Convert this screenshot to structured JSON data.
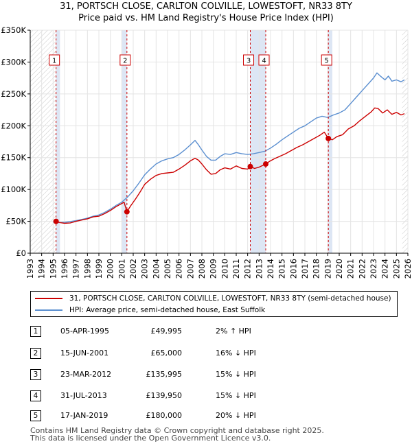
{
  "header": {
    "title": "31, PORTSCH CLOSE, CARLTON COLVILLE, LOWESTOFT, NR33 8TY",
    "subtitle": "Price paid vs. HM Land Registry's House Price Index (HPI)"
  },
  "chart_data": {
    "type": "line",
    "title": "31, PORTSCH CLOSE, CARLTON COLVILLE, LOWESTOFT, NR33 8TY",
    "subtitle": "Price paid vs. HM Land Registry's House Price Index (HPI)",
    "xlabel": "",
    "ylabel": "",
    "xlim": [
      1993,
      2026
    ],
    "ylim": [
      0,
      350000
    ],
    "y_ticks": [
      0,
      50000,
      100000,
      150000,
      200000,
      250000,
      300000,
      350000
    ],
    "y_tick_labels": [
      "£0",
      "£50K",
      "£100K",
      "£150K",
      "£200K",
      "£250K",
      "£300K",
      "£350K"
    ],
    "x_ticks": [
      1993,
      1994,
      1995,
      1996,
      1997,
      1998,
      1999,
      2000,
      2001,
      2002,
      2003,
      2004,
      2005,
      2006,
      2007,
      2008,
      2009,
      2010,
      2011,
      2012,
      2013,
      2014,
      2015,
      2016,
      2017,
      2018,
      2019,
      2020,
      2021,
      2022,
      2023,
      2024,
      2025,
      2026
    ],
    "x_tick_labels": [
      "1993",
      "1994",
      "1995",
      "1996",
      "1997",
      "1998",
      "1999",
      "2000",
      "2001",
      "2002",
      "2003",
      "2004",
      "2005",
      "2006",
      "2007",
      "2008",
      "2009",
      "2010",
      "2011",
      "2012",
      "2013",
      "2014",
      "2015",
      "2016",
      "2017",
      "2018",
      "2019",
      "2020",
      "2021",
      "2022",
      "2023",
      "2024",
      "2025",
      "2026"
    ],
    "grid": true,
    "legend_position": "below",
    "series": [
      {
        "name": "31, PORTSCH CLOSE, CARLTON COLVILLE, LOWESTOFT, NR33 8TY (semi-detached house)",
        "color": "#cc0000",
        "x": [
          1995.26,
          1995.6,
          1996,
          1996.5,
          1997,
          1997.5,
          1998,
          1998.5,
          1999,
          1999.5,
          2000,
          2000.5,
          2001,
          2001.2,
          2001.45,
          2001.8,
          2002.2,
          2002.6,
          2003,
          2003.5,
          2004,
          2004.5,
          2005,
          2005.5,
          2006,
          2006.5,
          2007,
          2007.4,
          2007.7,
          2008,
          2008.4,
          2008.8,
          2009.2,
          2009.6,
          2010,
          2010.5,
          2011,
          2011.5,
          2012,
          2012.23,
          2012.6,
          2013,
          2013.58,
          2013.9,
          2014.3,
          2014.8,
          2015.3,
          2015.8,
          2016.3,
          2016.8,
          2017.3,
          2017.8,
          2018.3,
          2018.7,
          2019.05,
          2019.4,
          2019.8,
          2020.3,
          2020.8,
          2021.3,
          2021.8,
          2022.3,
          2022.8,
          2023.1,
          2023.4,
          2023.8,
          2024.2,
          2024.6,
          2025,
          2025.4,
          2025.7
        ],
        "y": [
          49995,
          48000,
          47000,
          47500,
          50000,
          52000,
          54000,
          57000,
          58000,
          62000,
          67000,
          73000,
          78000,
          80000,
          65000,
          75000,
          85000,
          96000,
          108000,
          116000,
          122000,
          125000,
          126000,
          127000,
          132000,
          138000,
          145000,
          149000,
          146000,
          140000,
          131000,
          124000,
          125000,
          131000,
          134000,
          132000,
          137000,
          133000,
          132000,
          135995,
          133000,
          135000,
          139950,
          144000,
          148000,
          152000,
          156000,
          161000,
          166000,
          170000,
          175000,
          180000,
          185000,
          190000,
          180000,
          178000,
          183000,
          186000,
          195000,
          200000,
          208000,
          215000,
          222000,
          228000,
          227000,
          220000,
          225000,
          218000,
          221000,
          217000,
          219000
        ]
      },
      {
        "name": "HPI: Average price, semi-detached house, East Suffolk",
        "color": "#5b8fd0",
        "x": [
          1995,
          1995.5,
          1996,
          1996.5,
          1997,
          1997.5,
          1998,
          1998.5,
          1999,
          1999.5,
          2000,
          2000.5,
          2001,
          2001.5,
          2002,
          2002.5,
          2003,
          2003.5,
          2004,
          2004.5,
          2005,
          2005.5,
          2006,
          2006.5,
          2007,
          2007.4,
          2007.7,
          2008,
          2008.4,
          2008.8,
          2009.2,
          2009.6,
          2010,
          2010.5,
          2011,
          2011.5,
          2012,
          2012.5,
          2013,
          2013.5,
          2014,
          2014.5,
          2015,
          2015.5,
          2016,
          2016.5,
          2017,
          2017.5,
          2018,
          2018.5,
          2019,
          2019.5,
          2020,
          2020.5,
          2021,
          2021.5,
          2022,
          2022.5,
          2023,
          2023.3,
          2023.6,
          2024,
          2024.3,
          2024.6,
          2025,
          2025.4,
          2025.7
        ],
        "y": [
          49000,
          48000,
          48500,
          49500,
          51000,
          53000,
          55000,
          58000,
          60000,
          64000,
          69000,
          75000,
          80000,
          88000,
          98000,
          110000,
          123000,
          132000,
          140000,
          145000,
          148000,
          150000,
          155000,
          162000,
          170000,
          177000,
          170000,
          162000,
          152000,
          146000,
          146000,
          152000,
          156000,
          155000,
          158000,
          156000,
          155000,
          156000,
          158000,
          160000,
          165000,
          171000,
          178000,
          184000,
          190000,
          196000,
          200000,
          206000,
          212000,
          215000,
          213000,
          217000,
          220000,
          225000,
          235000,
          245000,
          255000,
          265000,
          275000,
          283000,
          278000,
          272000,
          278000,
          270000,
          272000,
          269000,
          272000
        ]
      }
    ],
    "sales": [
      {
        "num": "1",
        "year": 1995.26,
        "price": 49995
      },
      {
        "num": "2",
        "year": 2001.45,
        "price": 65000
      },
      {
        "num": "3",
        "year": 2012.23,
        "price": 135995
      },
      {
        "num": "4",
        "year": 2013.58,
        "price": 139950
      },
      {
        "num": "5",
        "year": 2019.05,
        "price": 180000
      }
    ]
  },
  "legend": {
    "property": "31, PORTSCH CLOSE, CARLTON COLVILLE, LOWESTOFT, NR33 8TY (semi-detached house)",
    "hpi": "HPI: Average price, semi-detached house, East Suffolk"
  },
  "transactions": [
    {
      "num": "1",
      "date": "05-APR-1995",
      "price": "£49,995",
      "hpi": "2% ↑ HPI"
    },
    {
      "num": "2",
      "date": "15-JUN-2001",
      "price": "£65,000",
      "hpi": "16% ↓ HPI"
    },
    {
      "num": "3",
      "date": "23-MAR-2012",
      "price": "£135,995",
      "hpi": "15% ↓ HPI"
    },
    {
      "num": "4",
      "date": "31-JUL-2013",
      "price": "£139,950",
      "hpi": "15% ↓ HPI"
    },
    {
      "num": "5",
      "date": "17-JAN-2019",
      "price": "£180,000",
      "hpi": "20% ↓ HPI"
    }
  ],
  "footer": {
    "line1": "Contains HM Land Registry data © Crown copyright and database right 2025.",
    "line2": "This data is licensed under the Open Government Licence v3.0."
  }
}
